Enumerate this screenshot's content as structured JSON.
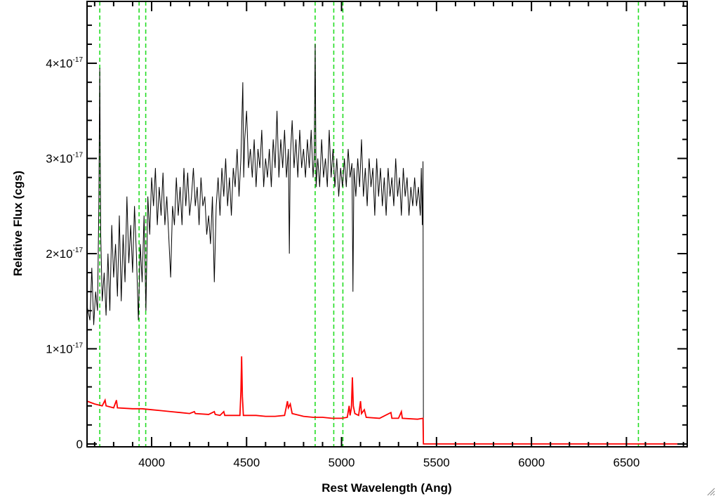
{
  "chart_data": {
    "type": "line",
    "xlabel": "Rest Wavelength (Ang)",
    "ylabel": "Relative Flux (cgs)",
    "xlim": [
      3660,
      6820
    ],
    "ylim": [
      -3e-19,
      4.65e-17
    ],
    "x_ticks": [
      4000,
      4500,
      5000,
      5500,
      6000,
      6500
    ],
    "x_tick_labels": [
      "4000",
      "4500",
      "5000",
      "5500",
      "6000",
      "6500"
    ],
    "x_minor_step": 100,
    "y_ticks": [
      0,
      1e-17,
      2e-17,
      3e-17,
      4e-17
    ],
    "y_tick_labels": [
      {
        "mantissa": "0",
        "exp": ""
      },
      {
        "mantissa": "1×10",
        "exp": "-17"
      },
      {
        "mantissa": "2×10",
        "exp": "-17"
      },
      {
        "mantissa": "3×10",
        "exp": "-17"
      },
      {
        "mantissa": "4×10",
        "exp": "-17"
      }
    ],
    "y_minor_step": 2e-18,
    "grid": false,
    "line_markers": [
      3727,
      3934,
      3969,
      4861,
      4959,
      5007,
      6563
    ],
    "series": [
      {
        "color": "#000000",
        "points": [
          [
            3660,
            1.45e-17
          ],
          [
            3675,
            1.3e-17
          ],
          [
            3685,
            1.85e-17
          ],
          [
            3695,
            1.25e-17
          ],
          [
            3705,
            1.6e-17
          ],
          [
            3715,
            1.4e-17
          ],
          [
            3722,
            2.5e-17
          ],
          [
            3727,
            3.95e-17
          ],
          [
            3732,
            2.2e-17
          ],
          [
            3740,
            1.5e-17
          ],
          [
            3750,
            1.8e-17
          ],
          [
            3760,
            1.35e-17
          ],
          [
            3770,
            2e-17
          ],
          [
            3780,
            1.4e-17
          ],
          [
            3790,
            2.3e-17
          ],
          [
            3800,
            1.75e-17
          ],
          [
            3810,
            2.1e-17
          ],
          [
            3820,
            1.55e-17
          ],
          [
            3830,
            2.4e-17
          ],
          [
            3840,
            1.5e-17
          ],
          [
            3850,
            2.2e-17
          ],
          [
            3860,
            1.7e-17
          ],
          [
            3870,
            2.6e-17
          ],
          [
            3880,
            1.9e-17
          ],
          [
            3890,
            2.3e-17
          ],
          [
            3900,
            1.8e-17
          ],
          [
            3910,
            2.5e-17
          ],
          [
            3920,
            2e-17
          ],
          [
            3930,
            1.3e-17
          ],
          [
            3940,
            2.1e-17
          ],
          [
            3950,
            1.7e-17
          ],
          [
            3960,
            2.4e-17
          ],
          [
            3970,
            1.4e-17
          ],
          [
            3980,
            2.6e-17
          ],
          [
            3990,
            2.2e-17
          ],
          [
            4000,
            2.8e-17
          ],
          [
            4010,
            2.5e-17
          ],
          [
            4020,
            2.9e-17
          ],
          [
            4030,
            2.3e-17
          ],
          [
            4040,
            2.7e-17
          ],
          [
            4050,
            2.4e-17
          ],
          [
            4060,
            2.85e-17
          ],
          [
            4070,
            2.3e-17
          ],
          [
            4080,
            2.6e-17
          ],
          [
            4090,
            2.2e-17
          ],
          [
            4100,
            1.75e-17
          ],
          [
            4110,
            2.5e-17
          ],
          [
            4120,
            2.3e-17
          ],
          [
            4130,
            2.8e-17
          ],
          [
            4140,
            2.4e-17
          ],
          [
            4150,
            2.7e-17
          ],
          [
            4160,
            2.3e-17
          ],
          [
            4170,
            2.9e-17
          ],
          [
            4180,
            2.5e-17
          ],
          [
            4190,
            2.85e-17
          ],
          [
            4200,
            2.4e-17
          ],
          [
            4210,
            2.6e-17
          ],
          [
            4220,
            2.9e-17
          ],
          [
            4230,
            2.5e-17
          ],
          [
            4240,
            2.7e-17
          ],
          [
            4250,
            2.3e-17
          ],
          [
            4260,
            2.8e-17
          ],
          [
            4270,
            2.5e-17
          ],
          [
            4280,
            2.6e-17
          ],
          [
            4290,
            2.2e-17
          ],
          [
            4300,
            2.4e-17
          ],
          [
            4310,
            2.1e-17
          ],
          [
            4320,
            2.6e-17
          ],
          [
            4330,
            1.7e-17
          ],
          [
            4340,
            2.5e-17
          ],
          [
            4350,
            2.8e-17
          ],
          [
            4360,
            2.4e-17
          ],
          [
            4370,
            2.9e-17
          ],
          [
            4380,
            2.6e-17
          ],
          [
            4390,
            3e-17
          ],
          [
            4400,
            2.5e-17
          ],
          [
            4410,
            2.8e-17
          ],
          [
            4420,
            2.4e-17
          ],
          [
            4430,
            2.9e-17
          ],
          [
            4440,
            2.7e-17
          ],
          [
            4450,
            3.1e-17
          ],
          [
            4460,
            2.6e-17
          ],
          [
            4470,
            3e-17
          ],
          [
            4480,
            3.8e-17
          ],
          [
            4485,
            2.8e-17
          ],
          [
            4490,
            3.2e-17
          ],
          [
            4500,
            3.5e-17
          ],
          [
            4510,
            2.9e-17
          ],
          [
            4520,
            3.1e-17
          ],
          [
            4530,
            2.8e-17
          ],
          [
            4540,
            3.2e-17
          ],
          [
            4550,
            2.7e-17
          ],
          [
            4560,
            3.1e-17
          ],
          [
            4570,
            2.9e-17
          ],
          [
            4580,
            3.3e-17
          ],
          [
            4590,
            2.7e-17
          ],
          [
            4600,
            3e-17
          ],
          [
            4610,
            2.8e-17
          ],
          [
            4620,
            3.1e-17
          ],
          [
            4630,
            2.7e-17
          ],
          [
            4640,
            3.2e-17
          ],
          [
            4650,
            2.9e-17
          ],
          [
            4660,
            3.5e-17
          ],
          [
            4670,
            2.8e-17
          ],
          [
            4680,
            3.2e-17
          ],
          [
            4690,
            2.9e-17
          ],
          [
            4700,
            3.3e-17
          ],
          [
            4710,
            2.8e-17
          ],
          [
            4720,
            3.1e-17
          ],
          [
            4725,
            2e-17
          ],
          [
            4730,
            3e-17
          ],
          [
            4740,
            3.4e-17
          ],
          [
            4750,
            2.9e-17
          ],
          [
            4760,
            3.2e-17
          ],
          [
            4770,
            2.8e-17
          ],
          [
            4780,
            3.3e-17
          ],
          [
            4790,
            2.9e-17
          ],
          [
            4800,
            3.1e-17
          ],
          [
            4810,
            2.8e-17
          ],
          [
            4820,
            3.2e-17
          ],
          [
            4830,
            2.9e-17
          ],
          [
            4840,
            3.3e-17
          ],
          [
            4850,
            2.8e-17
          ],
          [
            4856,
            3e-17
          ],
          [
            4861,
            4.2e-17
          ],
          [
            4866,
            2.7e-17
          ],
          [
            4875,
            3e-17
          ],
          [
            4885,
            2.7e-17
          ],
          [
            4895,
            3.2e-17
          ],
          [
            4905,
            2.8e-17
          ],
          [
            4915,
            3e-17
          ],
          [
            4925,
            2.7e-17
          ],
          [
            4935,
            3.3e-17
          ],
          [
            4945,
            2.8e-17
          ],
          [
            4955,
            3.1e-17
          ],
          [
            4965,
            2.7e-17
          ],
          [
            4975,
            3e-17
          ],
          [
            4985,
            2.6e-17
          ],
          [
            4995,
            2.9e-17
          ],
          [
            5005,
            2.7e-17
          ],
          [
            5015,
            3e-17
          ],
          [
            5025,
            2.7e-17
          ],
          [
            5035,
            3.1e-17
          ],
          [
            5045,
            2.8e-17
          ],
          [
            5055,
            2.95e-17
          ],
          [
            5060,
            1.6e-17
          ],
          [
            5065,
            2.9e-17
          ],
          [
            5075,
            2.6e-17
          ],
          [
            5085,
            3e-17
          ],
          [
            5095,
            2.7e-17
          ],
          [
            5105,
            3.2e-17
          ],
          [
            5115,
            2.6e-17
          ],
          [
            5125,
            2.9e-17
          ],
          [
            5135,
            2.5e-17
          ],
          [
            5145,
            3e-17
          ],
          [
            5155,
            2.7e-17
          ],
          [
            5165,
            2.9e-17
          ],
          [
            5175,
            2.4e-17
          ],
          [
            5185,
            3e-17
          ],
          [
            5195,
            2.6e-17
          ],
          [
            5205,
            2.9e-17
          ],
          [
            5215,
            2.5e-17
          ],
          [
            5225,
            2.8e-17
          ],
          [
            5235,
            2.4e-17
          ],
          [
            5245,
            2.9e-17
          ],
          [
            5255,
            2.6e-17
          ],
          [
            5265,
            2.8e-17
          ],
          [
            5275,
            2.5e-17
          ],
          [
            5285,
            3e-17
          ],
          [
            5295,
            2.6e-17
          ],
          [
            5305,
            2.8e-17
          ],
          [
            5315,
            2.4e-17
          ],
          [
            5325,
            2.9e-17
          ],
          [
            5335,
            2.6e-17
          ],
          [
            5345,
            2.8e-17
          ],
          [
            5355,
            2.4e-17
          ],
          [
            5365,
            2.7e-17
          ],
          [
            5375,
            2.5e-17
          ],
          [
            5385,
            2.8e-17
          ],
          [
            5395,
            2.5e-17
          ],
          [
            5405,
            2.7e-17
          ],
          [
            5415,
            2.4e-17
          ],
          [
            5420,
            2.9e-17
          ],
          [
            5425,
            2.3e-17
          ],
          [
            5429,
            2.97e-17
          ],
          [
            5431,
            0.0
          ]
        ]
      },
      {
        "color": "#ff0000",
        "points": [
          [
            3660,
            4.5e-18
          ],
          [
            3700,
            4.2e-18
          ],
          [
            3740,
            4e-18
          ],
          [
            3755,
            4.6e-18
          ],
          [
            3760,
            4e-18
          ],
          [
            3800,
            3.8e-18
          ],
          [
            3815,
            4.6e-18
          ],
          [
            3820,
            3.8e-18
          ],
          [
            3900,
            3.7e-18
          ],
          [
            3950,
            3.7e-18
          ],
          [
            4000,
            3.6e-18
          ],
          [
            4050,
            3.5e-18
          ],
          [
            4100,
            3.4e-18
          ],
          [
            4150,
            3.3e-18
          ],
          [
            4200,
            3.2e-18
          ],
          [
            4225,
            3.4e-18
          ],
          [
            4230,
            3.2e-18
          ],
          [
            4300,
            3.1e-18
          ],
          [
            4330,
            3.4e-18
          ],
          [
            4335,
            3.1e-18
          ],
          [
            4360,
            3e-18
          ],
          [
            4380,
            3.4e-18
          ],
          [
            4385,
            3e-18
          ],
          [
            4430,
            3e-18
          ],
          [
            4465,
            3e-18
          ],
          [
            4470,
            5.5e-18
          ],
          [
            4474,
            9.2e-18
          ],
          [
            4478,
            5e-18
          ],
          [
            4483,
            3e-18
          ],
          [
            4550,
            3e-18
          ],
          [
            4600,
            2.9e-18
          ],
          [
            4650,
            2.9e-18
          ],
          [
            4700,
            3e-18
          ],
          [
            4715,
            4.5e-18
          ],
          [
            4720,
            3.8e-18
          ],
          [
            4730,
            4.2e-18
          ],
          [
            4740,
            3.2e-18
          ],
          [
            4800,
            2.9e-18
          ],
          [
            4850,
            2.8e-18
          ],
          [
            4900,
            2.8e-18
          ],
          [
            4950,
            2.7e-18
          ],
          [
            5000,
            2.7e-18
          ],
          [
            5030,
            2.8e-18
          ],
          [
            5040,
            4e-18
          ],
          [
            5045,
            3e-18
          ],
          [
            5052,
            3.8e-18
          ],
          [
            5057,
            7e-18
          ],
          [
            5062,
            4e-18
          ],
          [
            5070,
            3.2e-18
          ],
          [
            5090,
            3e-18
          ],
          [
            5100,
            4.5e-18
          ],
          [
            5105,
            3.2e-18
          ],
          [
            5120,
            3.6e-18
          ],
          [
            5130,
            2.8e-18
          ],
          [
            5200,
            2.7e-18
          ],
          [
            5260,
            3.3e-18
          ],
          [
            5265,
            2.7e-18
          ],
          [
            5300,
            2.7e-18
          ],
          [
            5315,
            3.4e-18
          ],
          [
            5320,
            2.7e-18
          ],
          [
            5400,
            2.6e-18
          ],
          [
            5429,
            2.7e-18
          ],
          [
            5431,
            0.0
          ],
          [
            6820,
            0.0
          ]
        ]
      }
    ]
  }
}
